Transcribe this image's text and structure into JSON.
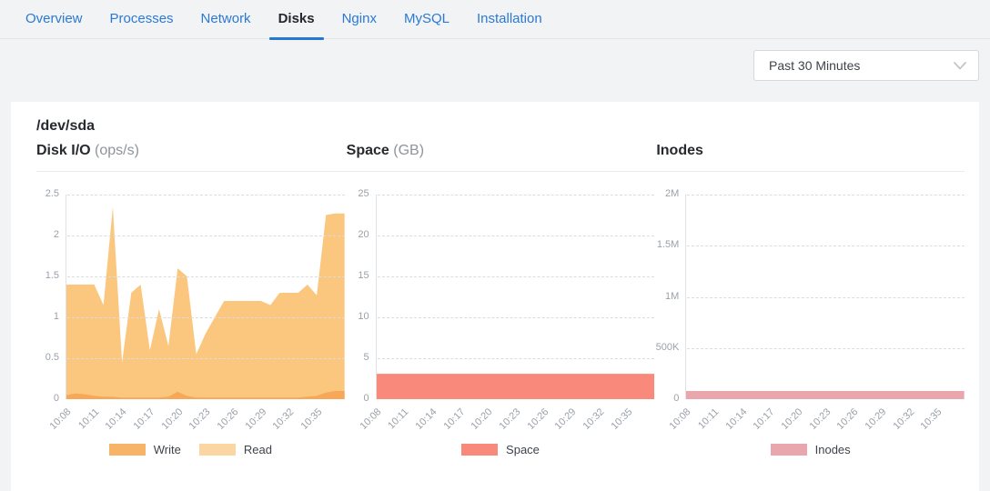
{
  "tabs": [
    {
      "label": "Overview",
      "active": false
    },
    {
      "label": "Processes",
      "active": false
    },
    {
      "label": "Network",
      "active": false
    },
    {
      "label": "Disks",
      "active": true
    },
    {
      "label": "Nginx",
      "active": false
    },
    {
      "label": "MySQL",
      "active": false
    },
    {
      "label": "Installation",
      "active": false
    }
  ],
  "time_range": {
    "selected": "Past 30 Minutes",
    "icon": "chevron-down-icon"
  },
  "panel": {
    "title": "/dev/sda"
  },
  "colors": {
    "accent_blue": "#2577d4",
    "background": "#f1f3f5",
    "write_area": "#fbc77e",
    "read_area": "#f6a758",
    "space_area": "#f9897a",
    "inodes_area": "#e9a6ad"
  },
  "chart_data": [
    {
      "type": "area",
      "title": "Disk I/O",
      "unit": "(ops/s)",
      "grid": true,
      "legend_position": "bottom",
      "y_max": 2.5,
      "y_ticks": [
        {
          "value": 0,
          "label": "0"
        },
        {
          "value": 0.5,
          "label": "0.5"
        },
        {
          "value": 1,
          "label": "1"
        },
        {
          "value": 1.5,
          "label": "1.5"
        },
        {
          "value": 2,
          "label": "2"
        },
        {
          "value": 2.5,
          "label": "2.5"
        }
      ],
      "x_tick_labels": [
        "10:08",
        "10:11",
        "10:14",
        "10:17",
        "10:20",
        "10:23",
        "10:26",
        "10:29",
        "10:32",
        "10:35"
      ],
      "x_tick_interval_min": 3,
      "x_span_min": 30,
      "series": [
        {
          "name": "Write",
          "area_color": "#fbc77e",
          "legend_color": "#f8b466",
          "values": [
            1.4,
            1.4,
            1.4,
            1.4,
            1.15,
            2.35,
            0.45,
            1.3,
            1.4,
            0.6,
            1.1,
            0.65,
            1.6,
            1.5,
            0.55,
            0.8,
            1.0,
            1.2,
            1.2,
            1.2,
            1.2,
            1.2,
            1.15,
            1.3,
            1.3,
            1.3,
            1.4,
            1.27,
            2.25,
            2.27,
            2.27
          ]
        },
        {
          "name": "Read",
          "area_color": "#f6a758",
          "legend_color": "#fbd5a2",
          "values": [
            0.05,
            0.07,
            0.06,
            0.04,
            0.03,
            0.03,
            0.02,
            0.02,
            0.02,
            0.02,
            0.02,
            0.03,
            0.09,
            0.04,
            0.02,
            0.02,
            0.02,
            0.02,
            0.02,
            0.02,
            0.02,
            0.02,
            0.02,
            0.02,
            0.02,
            0.02,
            0.03,
            0.04,
            0.08,
            0.1,
            0.1
          ]
        }
      ]
    },
    {
      "type": "area",
      "title": "Space",
      "unit": "(GB)",
      "grid": true,
      "legend_position": "bottom",
      "y_max": 25,
      "y_ticks": [
        {
          "value": 0,
          "label": "0"
        },
        {
          "value": 5,
          "label": "5"
        },
        {
          "value": 10,
          "label": "10"
        },
        {
          "value": 15,
          "label": "15"
        },
        {
          "value": 20,
          "label": "20"
        },
        {
          "value": 25,
          "label": "25"
        }
      ],
      "x_tick_labels": [
        "10:08",
        "10:11",
        "10:14",
        "10:17",
        "10:20",
        "10:23",
        "10:26",
        "10:29",
        "10:32",
        "10:35"
      ],
      "x_tick_interval_min": 3,
      "x_span_min": 30,
      "series": [
        {
          "name": "Space",
          "area_color": "#f9897a",
          "legend_color": "#f9897a",
          "values": [
            3.1,
            3.1
          ]
        }
      ]
    },
    {
      "type": "area",
      "title": "Inodes",
      "unit": "",
      "grid": true,
      "legend_position": "bottom",
      "y_max": 2000000,
      "y_ticks": [
        {
          "value": 0,
          "label": "0"
        },
        {
          "value": 500000,
          "label": "500K"
        },
        {
          "value": 1000000,
          "label": "1M"
        },
        {
          "value": 1500000,
          "label": "1.5M"
        },
        {
          "value": 2000000,
          "label": "2M"
        }
      ],
      "x_tick_labels": [
        "10:08",
        "10:11",
        "10:14",
        "10:17",
        "10:20",
        "10:23",
        "10:26",
        "10:29",
        "10:32",
        "10:35"
      ],
      "x_tick_interval_min": 3,
      "x_span_min": 30,
      "series": [
        {
          "name": "Inodes",
          "area_color": "#e9a6ad",
          "legend_color": "#e9a6ad",
          "values": [
            80000,
            80000
          ]
        }
      ]
    }
  ]
}
